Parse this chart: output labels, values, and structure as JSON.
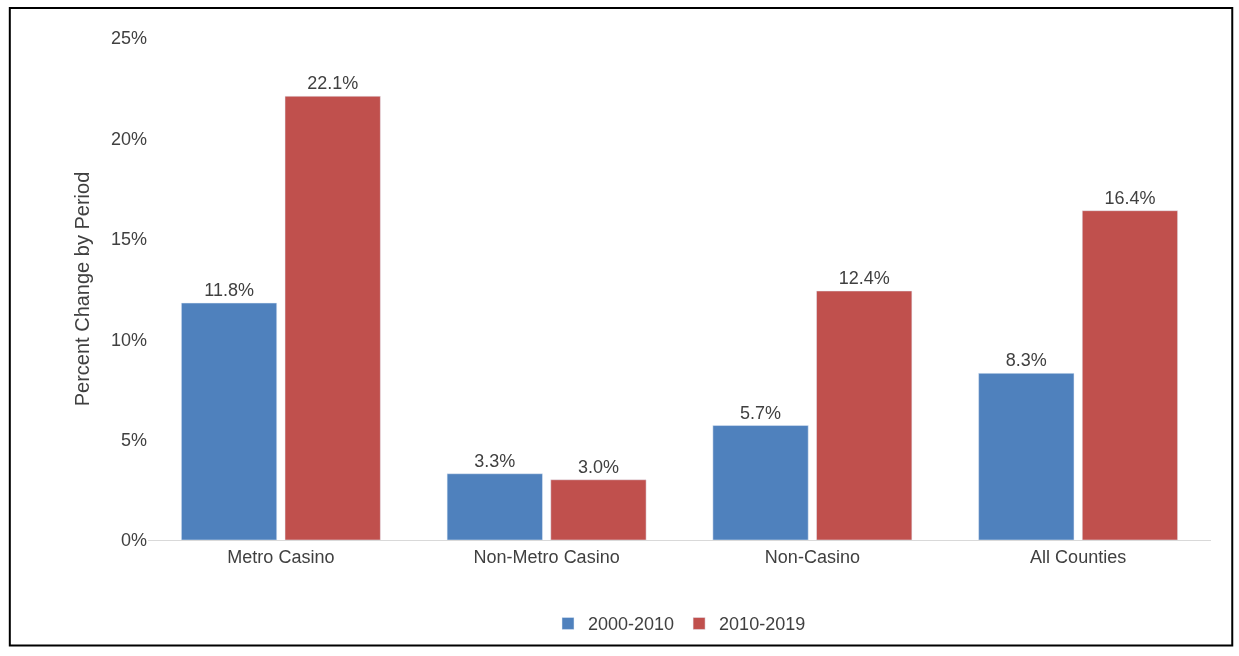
{
  "chart_data": {
    "type": "bar",
    "ylabel": "Percent Change by Period",
    "categories": [
      "Metro Casino",
      "Non-Metro Casino",
      "Non-Casino",
      "All Counties"
    ],
    "series": [
      {
        "name": "2000-2010",
        "color": "#4f81bd",
        "values": [
          11.8,
          3.3,
          5.7,
          8.3
        ],
        "value_labels": [
          "11.8%",
          "3.3%",
          "5.7%",
          "8.3%"
        ]
      },
      {
        "name": "2010-2019",
        "color": "#c0504d",
        "values": [
          22.1,
          3.0,
          12.4,
          16.4
        ],
        "value_labels": [
          "22.1%",
          "3.0%",
          "12.4%",
          "16.4%"
        ]
      }
    ],
    "ylim": [
      0,
      25
    ],
    "yticks": [
      {
        "value": 0,
        "label": "0%"
      },
      {
        "value": 5,
        "label": "5%"
      },
      {
        "value": 10,
        "label": "10%"
      },
      {
        "value": 15,
        "label": "15%"
      },
      {
        "value": 20,
        "label": "20%"
      },
      {
        "value": 25,
        "label": "25%"
      }
    ],
    "grid": false,
    "legend": "bottom"
  }
}
